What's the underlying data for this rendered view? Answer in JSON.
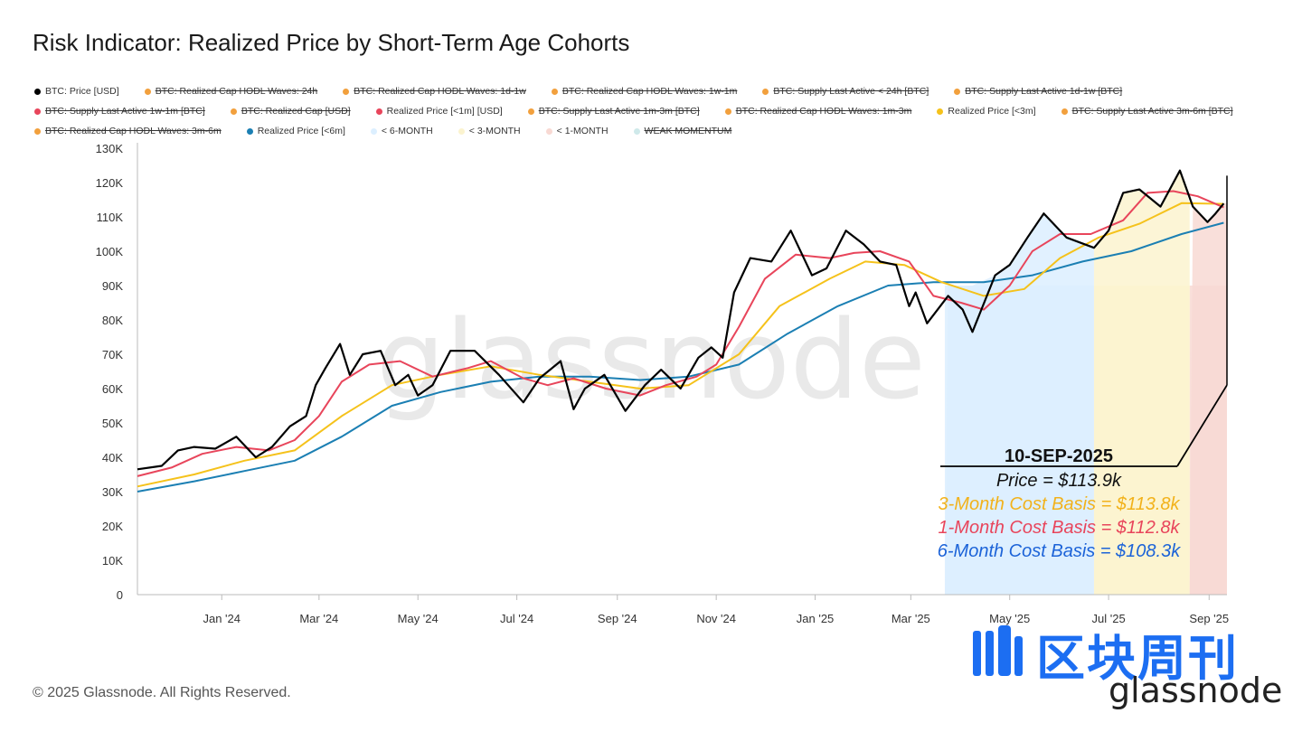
{
  "title": "Risk Indicator: Realized Price by Short-Term Age Cohorts",
  "copyright": "© 2025 Glassnode. All Rights Reserved.",
  "watermark": "glassnode",
  "brand": {
    "cn": "区块周刊",
    "en": "glassnode"
  },
  "legend": [
    [
      {
        "label": "BTC: Price [USD]",
        "color": "#000000",
        "active": true
      },
      {
        "label": "BTC: Realized Cap HODL Waves: 24h",
        "color": "#f2a03d",
        "active": false
      },
      {
        "label": "BTC: Realized Cap HODL Waves: 1d-1w",
        "color": "#f2a03d",
        "active": false
      },
      {
        "label": "BTC: Realized Cap HODL Waves: 1w-1m",
        "color": "#f2a03d",
        "active": false
      },
      {
        "label": "BTC: Supply Last Active < 24h [BTC]",
        "color": "#f2a03d",
        "active": false
      },
      {
        "label": "BTC: Supply Last Active 1d-1w [BTC]",
        "color": "#f2a03d",
        "active": false
      }
    ],
    [
      {
        "label": "BTC: Supply Last Active 1w-1m [BTC]",
        "color": "#e8455b",
        "active": false
      },
      {
        "label": "BTC: Realized Cap [USD]",
        "color": "#f2a03d",
        "active": false
      },
      {
        "label": "Realized Price [<1m] [USD]",
        "color": "#e8455b",
        "active": true
      },
      {
        "label": "BTC: Supply Last Active 1m-3m [BTC]",
        "color": "#f2a03d",
        "active": false
      },
      {
        "label": "BTC: Realized Cap HODL Waves: 1m-3m",
        "color": "#f2a03d",
        "active": false
      },
      {
        "label": "Realized Price [<3m]",
        "color": "#f5c21b",
        "active": true
      },
      {
        "label": "BTC: Supply Last Active 3m-6m [BTC]",
        "color": "#f2a03d",
        "active": false
      }
    ],
    [
      {
        "label": "BTC: Realized Cap HODL Waves: 3m-6m",
        "color": "#f2a03d",
        "active": false
      },
      {
        "label": "Realized Price [<6m]",
        "color": "#1b7fb3",
        "active": true
      },
      {
        "label": "< 6-MONTH",
        "color": "#dcefff",
        "active": true
      },
      {
        "label": "< 3-MONTH",
        "color": "#fbf3cf",
        "active": true
      },
      {
        "label": "< 1-MONTH",
        "color": "#f8d9d3",
        "active": true
      },
      {
        "label": "WEAK MOMENTUM",
        "color": "#cfe9ea",
        "active": false
      }
    ]
  ],
  "chart_data": {
    "type": "line",
    "y_ticks": [
      "0",
      "10K",
      "20K",
      "30K",
      "40K",
      "50K",
      "60K",
      "70K",
      "80K",
      "90K",
      "100K",
      "110K",
      "120K",
      "130K"
    ],
    "ylim": [
      0,
      130000
    ],
    "x_ticks": [
      {
        "label": "Jan '24",
        "date": "2024-01-01"
      },
      {
        "label": "Mar '24",
        "date": "2024-03-01"
      },
      {
        "label": "May '24",
        "date": "2024-05-01"
      },
      {
        "label": "Jul '24",
        "date": "2024-07-01"
      },
      {
        "label": "Sep '24",
        "date": "2024-09-01"
      },
      {
        "label": "Nov '24",
        "date": "2024-11-01"
      },
      {
        "label": "Jan '25",
        "date": "2025-01-01"
      },
      {
        "label": "Mar '25",
        "date": "2025-03-01"
      },
      {
        "label": "May '25",
        "date": "2025-05-01"
      },
      {
        "label": "Jul '25",
        "date": "2025-07-01"
      },
      {
        "label": "Sep '25",
        "date": "2025-09-01"
      }
    ],
    "xlim": [
      "2023-11-10",
      "2025-09-12"
    ],
    "series": [
      {
        "name": "BTC: Price [USD]",
        "color": "#000000",
        "width": 2.2,
        "points": [
          [
            "2023-11-10",
            36500
          ],
          [
            "2023-11-25",
            37500
          ],
          [
            "2023-12-05",
            42000
          ],
          [
            "2023-12-15",
            43000
          ],
          [
            "2023-12-28",
            42500
          ],
          [
            "2024-01-10",
            46000
          ],
          [
            "2024-01-22",
            40000
          ],
          [
            "2024-02-01",
            43000
          ],
          [
            "2024-02-12",
            49000
          ],
          [
            "2024-02-22",
            52000
          ],
          [
            "2024-02-28",
            61000
          ],
          [
            "2024-03-05",
            66000
          ],
          [
            "2024-03-14",
            73000
          ],
          [
            "2024-03-20",
            64000
          ],
          [
            "2024-03-28",
            70000
          ],
          [
            "2024-04-08",
            71000
          ],
          [
            "2024-04-17",
            61000
          ],
          [
            "2024-04-25",
            64000
          ],
          [
            "2024-05-01",
            58000
          ],
          [
            "2024-05-10",
            61000
          ],
          [
            "2024-05-21",
            71000
          ],
          [
            "2024-06-05",
            71000
          ],
          [
            "2024-06-20",
            64000
          ],
          [
            "2024-07-05",
            56000
          ],
          [
            "2024-07-15",
            63000
          ],
          [
            "2024-07-28",
            68000
          ],
          [
            "2024-08-05",
            54000
          ],
          [
            "2024-08-12",
            60000
          ],
          [
            "2024-08-24",
            64000
          ],
          [
            "2024-09-06",
            53500
          ],
          [
            "2024-09-18",
            61000
          ],
          [
            "2024-09-28",
            65500
          ],
          [
            "2024-10-10",
            60000
          ],
          [
            "2024-10-21",
            69000
          ],
          [
            "2024-10-29",
            72000
          ],
          [
            "2024-11-05",
            69000
          ],
          [
            "2024-11-12",
            88000
          ],
          [
            "2024-11-22",
            98000
          ],
          [
            "2024-12-05",
            97000
          ],
          [
            "2024-12-17",
            106000
          ],
          [
            "2024-12-30",
            93000
          ],
          [
            "2025-01-08",
            95000
          ],
          [
            "2025-01-20",
            106000
          ],
          [
            "2025-01-31",
            102000
          ],
          [
            "2025-02-10",
            97000
          ],
          [
            "2025-02-20",
            96000
          ],
          [
            "2025-02-28",
            84000
          ],
          [
            "2025-03-04",
            88000
          ],
          [
            "2025-03-11",
            79000
          ],
          [
            "2025-03-24",
            87000
          ],
          [
            "2025-04-02",
            83000
          ],
          [
            "2025-04-08",
            76500
          ],
          [
            "2025-04-22",
            93000
          ],
          [
            "2025-05-01",
            96000
          ],
          [
            "2025-05-12",
            104000
          ],
          [
            "2025-05-22",
            111000
          ],
          [
            "2025-06-05",
            104000
          ],
          [
            "2025-06-22",
            101000
          ],
          [
            "2025-07-01",
            106000
          ],
          [
            "2025-07-10",
            117000
          ],
          [
            "2025-07-20",
            118000
          ],
          [
            "2025-08-02",
            113000
          ],
          [
            "2025-08-14",
            123500
          ],
          [
            "2025-08-22",
            113000
          ],
          [
            "2025-08-31",
            108500
          ],
          [
            "2025-09-05",
            111000
          ],
          [
            "2025-09-10",
            113900
          ]
        ]
      },
      {
        "name": "Realized Price [<1m] [USD]",
        "color": "#e8455b",
        "width": 2,
        "points": [
          [
            "2023-11-10",
            34500
          ],
          [
            "2023-12-01",
            37000
          ],
          [
            "2023-12-20",
            41000
          ],
          [
            "2024-01-10",
            43000
          ],
          [
            "2024-01-30",
            42000
          ],
          [
            "2024-02-15",
            45000
          ],
          [
            "2024-03-01",
            52000
          ],
          [
            "2024-03-15",
            62000
          ],
          [
            "2024-04-01",
            67000
          ],
          [
            "2024-04-20",
            68000
          ],
          [
            "2024-05-10",
            63500
          ],
          [
            "2024-06-01",
            66000
          ],
          [
            "2024-06-15",
            68000
          ],
          [
            "2024-07-05",
            63000
          ],
          [
            "2024-07-20",
            61000
          ],
          [
            "2024-08-05",
            63000
          ],
          [
            "2024-08-25",
            60000
          ],
          [
            "2024-09-15",
            58000
          ],
          [
            "2024-10-01",
            61000
          ],
          [
            "2024-10-20",
            63500
          ],
          [
            "2024-11-01",
            67000
          ],
          [
            "2024-11-15",
            78000
          ],
          [
            "2024-12-01",
            92000
          ],
          [
            "2024-12-20",
            99000
          ],
          [
            "2025-01-10",
            98000
          ],
          [
            "2025-01-25",
            99500
          ],
          [
            "2025-02-10",
            100000
          ],
          [
            "2025-02-28",
            97000
          ],
          [
            "2025-03-15",
            87000
          ],
          [
            "2025-04-01",
            85000
          ],
          [
            "2025-04-15",
            83000
          ],
          [
            "2025-05-01",
            90000
          ],
          [
            "2025-05-15",
            100000
          ],
          [
            "2025-06-01",
            105000
          ],
          [
            "2025-06-20",
            105000
          ],
          [
            "2025-07-10",
            109000
          ],
          [
            "2025-07-25",
            117000
          ],
          [
            "2025-08-10",
            117500
          ],
          [
            "2025-08-25",
            116000
          ],
          [
            "2025-09-10",
            112800
          ]
        ]
      },
      {
        "name": "Realized Price [<3m]",
        "color": "#f5c21b",
        "width": 2,
        "points": [
          [
            "2023-11-10",
            31500
          ],
          [
            "2023-12-15",
            35000
          ],
          [
            "2024-01-15",
            39000
          ],
          [
            "2024-02-15",
            42000
          ],
          [
            "2024-03-15",
            52000
          ],
          [
            "2024-04-15",
            61000
          ],
          [
            "2024-05-15",
            64000
          ],
          [
            "2024-06-15",
            66500
          ],
          [
            "2024-07-15",
            64000
          ],
          [
            "2024-08-15",
            62000
          ],
          [
            "2024-09-15",
            60000
          ],
          [
            "2024-10-15",
            61000
          ],
          [
            "2024-11-15",
            70000
          ],
          [
            "2024-12-10",
            84000
          ],
          [
            "2025-01-10",
            92000
          ],
          [
            "2025-02-01",
            97000
          ],
          [
            "2025-02-25",
            96000
          ],
          [
            "2025-03-20",
            91000
          ],
          [
            "2025-04-15",
            87000
          ],
          [
            "2025-05-10",
            89000
          ],
          [
            "2025-06-01",
            98000
          ],
          [
            "2025-06-25",
            104000
          ],
          [
            "2025-07-20",
            108000
          ],
          [
            "2025-08-15",
            114000
          ],
          [
            "2025-09-10",
            113800
          ]
        ]
      },
      {
        "name": "Realized Price [<6m]",
        "color": "#1b7fb3",
        "width": 2,
        "points": [
          [
            "2023-11-10",
            30000
          ],
          [
            "2023-12-15",
            33000
          ],
          [
            "2024-01-15",
            36000
          ],
          [
            "2024-02-15",
            39000
          ],
          [
            "2024-03-15",
            46000
          ],
          [
            "2024-04-15",
            55000
          ],
          [
            "2024-05-15",
            59000
          ],
          [
            "2024-06-15",
            62000
          ],
          [
            "2024-07-15",
            63500
          ],
          [
            "2024-08-15",
            63500
          ],
          [
            "2024-09-15",
            62500
          ],
          [
            "2024-10-15",
            63500
          ],
          [
            "2024-11-15",
            67000
          ],
          [
            "2024-12-15",
            76000
          ],
          [
            "2025-01-15",
            84000
          ],
          [
            "2025-02-15",
            90000
          ],
          [
            "2025-03-15",
            91000
          ],
          [
            "2025-04-15",
            91000
          ],
          [
            "2025-05-15",
            93000
          ],
          [
            "2025-06-15",
            97000
          ],
          [
            "2025-07-15",
            100000
          ],
          [
            "2025-08-15",
            105000
          ],
          [
            "2025-09-10",
            108300
          ]
        ]
      }
    ],
    "bands": [
      {
        "name": "< 6-MONTH",
        "color": "#dcefff",
        "from": "2025-03-22",
        "to": "2025-06-22"
      },
      {
        "name": "< 3-MONTH",
        "color": "#fbf3cf",
        "from": "2025-06-22",
        "to": "2025-08-20"
      },
      {
        "name": "< 1-MONTH",
        "color": "#f8d9d3",
        "from": "2025-08-20",
        "to": "2025-09-12"
      }
    ],
    "annotation": {
      "date_label": "10-SEP-2025",
      "lines": [
        {
          "text": "Price = $113.9k",
          "color": "#111111"
        },
        {
          "text": "3-Month Cost Basis = $113.8k",
          "color": "#f2b21b"
        },
        {
          "text": "1-Month Cost Basis = $112.8k",
          "color": "#e8455b"
        },
        {
          "text": "6-Month Cost Basis =  $108.3k",
          "color": "#1c63d8"
        }
      ]
    }
  }
}
